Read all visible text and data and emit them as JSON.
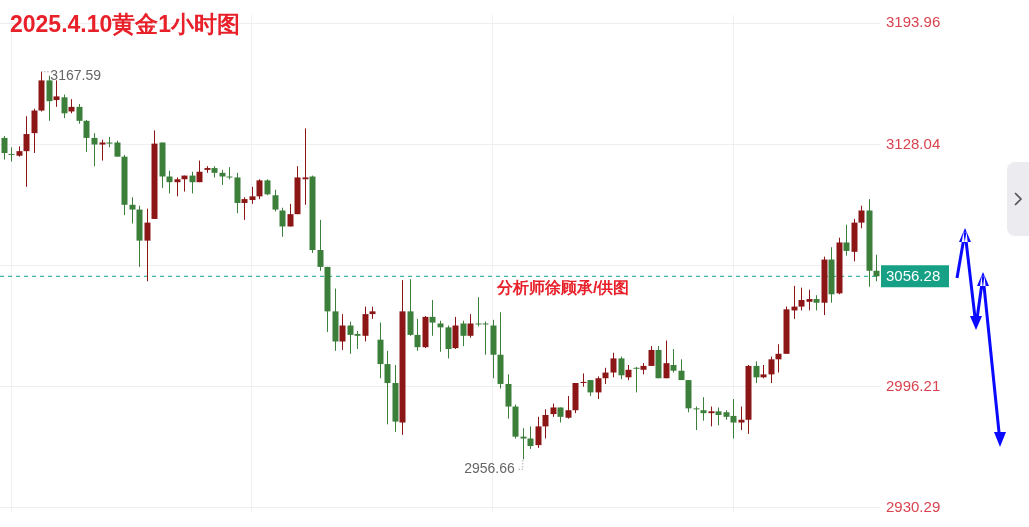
{
  "chart_data": {
    "type": "candlestick",
    "title": "2025.4.10黄金1小时图",
    "categories": [
      null,
      null,
      null,
      null,
      null,
      null,
      null,
      null,
      null,
      null,
      null,
      null,
      null,
      null,
      null,
      null,
      null,
      null,
      null,
      null,
      null,
      null,
      null,
      null,
      null,
      null,
      null,
      null,
      null,
      null,
      null,
      null,
      null,
      null,
      null,
      null,
      null,
      null,
      null,
      null,
      null,
      null,
      null,
      null,
      null,
      null,
      null,
      null,
      null,
      null,
      null,
      null,
      null,
      null,
      null,
      null,
      null,
      null,
      null,
      null,
      null,
      null,
      null,
      null,
      null,
      null,
      null,
      null,
      null,
      null,
      null,
      null,
      null,
      null,
      null,
      null,
      null,
      null,
      null,
      null,
      null,
      null,
      null,
      null,
      null,
      null,
      null,
      null,
      null,
      null,
      null,
      null,
      null,
      null,
      null,
      null,
      null,
      null,
      null,
      null,
      null,
      null,
      null,
      null,
      null,
      null,
      null,
      null,
      null,
      null,
      null,
      null,
      null,
      null,
      null,
      null,
      null
    ],
    "ohlc": [
      [
        3131.6,
        3132.6,
        3119.8,
        3123.4
      ],
      [
        3122.9,
        3126.5,
        3118.8,
        3122.4
      ],
      [
        3121.9,
        3127.0,
        3121.4,
        3124.4
      ],
      [
        3124.4,
        3143.4,
        3105.0,
        3133.7
      ],
      [
        3134.2,
        3147.5,
        3123.4,
        3146.5
      ],
      [
        3146.5,
        3167.59,
        3146.0,
        3162.9
      ],
      [
        3162.9,
        3165.5,
        3140.9,
        3151.6
      ],
      [
        3152.2,
        3162.9,
        3148.5,
        3154.2
      ],
      [
        3153.7,
        3155.2,
        3142.4,
        3145.0
      ],
      [
        3146.0,
        3152.7,
        3145.0,
        3148.5
      ],
      [
        3148.5,
        3150.1,
        3139.3,
        3140.9
      ],
      [
        3140.9,
        3141.4,
        3123.9,
        3131.6
      ],
      [
        3131.6,
        3134.2,
        3116.2,
        3128.0
      ],
      [
        3128.0,
        3130.6,
        3119.3,
        3129.1
      ],
      [
        3129.1,
        3132.1,
        3126.5,
        3128.5
      ],
      [
        3129.1,
        3130.1,
        3121.4,
        3121.4
      ],
      [
        3121.4,
        3122.4,
        3089.6,
        3095.2
      ],
      [
        3095.2,
        3099.3,
        3085.0,
        3092.6
      ],
      [
        3092.6,
        3094.7,
        3061.4,
        3075.7
      ],
      [
        3075.7,
        3093.1,
        3053.6,
        3085.5
      ],
      [
        3087.5,
        3135.7,
        3087.5,
        3128.5
      ],
      [
        3129.1,
        3129.1,
        3104.4,
        3110.6
      ],
      [
        3110.6,
        3113.7,
        3101.4,
        3107.5
      ],
      [
        3107.5,
        3110.1,
        3099.8,
        3109.1
      ],
      [
        3109.1,
        3111.1,
        3102.4,
        3111.1
      ],
      [
        3111.1,
        3113.2,
        3101.4,
        3107.5
      ],
      [
        3107.5,
        3119.3,
        3107.5,
        3113.2
      ],
      [
        3114.2,
        3116.2,
        3112.6,
        3115.2
      ],
      [
        3115.2,
        3116.2,
        3110.1,
        3112.6
      ],
      [
        3112.6,
        3114.2,
        3106.0,
        3110.6
      ],
      [
        3110.6,
        3115.7,
        3109.1,
        3110.1
      ],
      [
        3110.1,
        3112.6,
        3090.6,
        3096.2
      ],
      [
        3096.2,
        3099.3,
        3087.0,
        3098.3
      ],
      [
        3097.8,
        3105.0,
        3095.7,
        3099.8
      ],
      [
        3099.8,
        3109.1,
        3098.3,
        3108.5
      ],
      [
        3108.5,
        3109.1,
        3100.4,
        3100.9
      ],
      [
        3100.4,
        3103.4,
        3091.6,
        3092.6
      ],
      [
        3092.1,
        3093.6,
        3077.8,
        3083.4
      ],
      [
        3083.4,
        3095.7,
        3083.4,
        3090.1
      ],
      [
        3090.1,
        3116.2,
        3090.1,
        3110.1
      ],
      [
        3109.1,
        3136.8,
        3095.2,
        3110.1
      ],
      [
        3110.6,
        3111.1,
        3069.0,
        3070.6
      ],
      [
        3070.6,
        3087.0,
        3059.3,
        3061.4
      ],
      [
        3061.4,
        3061.4,
        3026.0,
        3037.2
      ],
      [
        3037.2,
        3049.6,
        3015.7,
        3020.8
      ],
      [
        3020.8,
        3035.7,
        3016.2,
        3029.5
      ],
      [
        3029.5,
        3031.6,
        3014.1,
        3024.4
      ],
      [
        3024.9,
        3026.5,
        3016.7,
        3023.9
      ],
      [
        3023.9,
        3039.8,
        3020.8,
        3035.7
      ],
      [
        3035.7,
        3039.8,
        3033.1,
        3037.2
      ],
      [
        3021.8,
        3031.1,
        3000.8,
        3008.5
      ],
      [
        3008.5,
        3015.7,
        2975.7,
        2998.2
      ],
      [
        2998.2,
        3008.0,
        2971.6,
        2977.2
      ],
      [
        2976.7,
        3054.2,
        2970.0,
        3037.2
      ],
      [
        3037.2,
        3054.7,
        3023.9,
        3024.4
      ],
      [
        3024.4,
        3033.1,
        3015.7,
        3017.7
      ],
      [
        3017.7,
        3034.7,
        3017.2,
        3034.2
      ],
      [
        3034.2,
        3043.4,
        3023.9,
        3031.1
      ],
      [
        3030.6,
        3032.1,
        3015.2,
        3028.5
      ],
      [
        3028.5,
        3029.5,
        3011.6,
        3016.7
      ],
      [
        3017.2,
        3034.2,
        3016.7,
        3029.5
      ],
      [
        3030.6,
        3032.1,
        3018.3,
        3023.9
      ],
      [
        3023.9,
        3035.7,
        3022.9,
        3030.6
      ],
      [
        3030.6,
        3044.9,
        3029.0,
        3030.1
      ],
      [
        3030.6,
        3031.6,
        3013.6,
        3030.1
      ],
      [
        3029.5,
        3032.6,
        3000.8,
        3013.6
      ],
      [
        3013.6,
        3036.7,
        2995.2,
        2997.7
      ],
      [
        2997.7,
        3002.9,
        2978.8,
        2985.4
      ],
      [
        2985.4,
        2986.5,
        2968.0,
        2969.0
      ],
      [
        2969.0,
        2973.6,
        2956.66,
        2968.0
      ],
      [
        2968.0,
        2974.6,
        2962.3,
        2963.9
      ],
      [
        2964.4,
        2979.8,
        2962.9,
        2974.6
      ],
      [
        2974.6,
        2983.9,
        2968.0,
        2980.8
      ],
      [
        2981.3,
        2987.0,
        2979.8,
        2984.9
      ],
      [
        2984.9,
        2984.9,
        2976.7,
        2979.8
      ],
      [
        2979.3,
        2991.1,
        2978.8,
        2983.4
      ],
      [
        2983.4,
        2998.2,
        2981.8,
        2998.2
      ],
      [
        2998.2,
        3003.4,
        2996.2,
        2998.8
      ],
      [
        2999.8,
        2999.8,
        2991.1,
        2993.1
      ],
      [
        2993.1,
        3001.8,
        2989.5,
        3000.8
      ],
      [
        3000.8,
        3006.5,
        2997.7,
        3003.9
      ],
      [
        3003.9,
        3014.7,
        3001.3,
        3011.6
      ],
      [
        3011.6,
        3012.6,
        3000.3,
        3002.4
      ],
      [
        3001.3,
        3008.0,
        2999.8,
        3005.4
      ],
      [
        3006.5,
        3007.0,
        2993.1,
        3006.0
      ],
      [
        3005.4,
        3009.0,
        3002.9,
        3007.5
      ],
      [
        3007.5,
        3018.3,
        3007.5,
        3016.2
      ],
      [
        3016.2,
        3018.3,
        3000.8,
        3000.8
      ],
      [
        3000.8,
        3021.3,
        3000.8,
        3009.0
      ],
      [
        3008.0,
        3016.7,
        3003.9,
        3004.9
      ],
      [
        3004.9,
        3011.1,
        2999.8,
        2999.8
      ],
      [
        2999.8,
        2999.8,
        2982.3,
        2984.4
      ],
      [
        2984.4,
        2985.4,
        2972.6,
        2983.9
      ],
      [
        2983.4,
        2990.5,
        2977.7,
        2981.8
      ],
      [
        2981.8,
        2985.4,
        2974.6,
        2982.8
      ],
      [
        2982.8,
        2984.9,
        2975.2,
        2980.8
      ],
      [
        2982.3,
        2983.4,
        2978.2,
        2979.8
      ],
      [
        2980.3,
        2989.5,
        2968.0,
        2976.7
      ],
      [
        2976.7,
        2985.4,
        2972.6,
        2978.2
      ],
      [
        2978.2,
        3008.0,
        2970.5,
        3007.5
      ],
      [
        3007.5,
        3010.0,
        2998.2,
        3001.3
      ],
      [
        3001.3,
        3008.0,
        3000.8,
        3002.9
      ],
      [
        3002.9,
        3012.6,
        2998.2,
        3011.1
      ],
      [
        3011.1,
        3019.3,
        3003.9,
        3014.1
      ],
      [
        3014.1,
        3039.8,
        3014.1,
        3038.3
      ],
      [
        3037.7,
        3051.1,
        3033.1,
        3039.8
      ],
      [
        3039.8,
        3050.1,
        3037.7,
        3043.4
      ],
      [
        3042.4,
        3049.0,
        3037.7,
        3043.9
      ],
      [
        3043.9,
        3046.0,
        3037.7,
        3041.9
      ],
      [
        3041.9,
        3067.0,
        3035.2,
        3065.4
      ],
      [
        3065.4,
        3072.1,
        3041.9,
        3046.5
      ],
      [
        3047.0,
        3077.3,
        3046.5,
        3074.7
      ],
      [
        3074.7,
        3084.4,
        3067.5,
        3070.1
      ],
      [
        3069.6,
        3087.5,
        3064.4,
        3085.5
      ],
      [
        3085.5,
        3094.7,
        3082.4,
        3092.1
      ],
      [
        3092.1,
        3098.3,
        3050.6,
        3059.3
      ],
      [
        3059.3,
        3068.0,
        3053.6,
        3056.28
      ]
    ],
    "colors": [
      "#3b7f3b",
      "#3b7f3b",
      "#8c1616",
      "#8c1616",
      "#8c1616",
      "#8c1616",
      "#3b7f3b",
      "#8c1616",
      "#3b7f3b",
      "#8c1616",
      "#3b7f3b",
      "#3b7f3b",
      "#3b7f3b",
      "#8c1616",
      "#3b7f3b",
      "#3b7f3b",
      "#3b7f3b",
      "#3b7f3b",
      "#3b7f3b",
      "#8c1616",
      "#8c1616",
      "#3b7f3b",
      "#3b7f3b",
      "#8c1616",
      "#8c1616",
      "#3b7f3b",
      "#8c1616",
      "#8c1616",
      "#3b7f3b",
      "#3b7f3b",
      "#3b7f3b",
      "#3b7f3b",
      "#8c1616",
      "#8c1616",
      "#8c1616",
      "#3b7f3b",
      "#3b7f3b",
      "#3b7f3b",
      "#8c1616",
      "#8c1616",
      "#8c1616",
      "#3b7f3b",
      "#3b7f3b",
      "#3b7f3b",
      "#3b7f3b",
      "#8c1616",
      "#3b7f3b",
      "#3b7f3b",
      "#8c1616",
      "#8c1616",
      "#3b7f3b",
      "#3b7f3b",
      "#3b7f3b",
      "#8c1616",
      "#3b7f3b",
      "#3b7f3b",
      "#8c1616",
      "#3b7f3b",
      "#3b7f3b",
      "#3b7f3b",
      "#8c1616",
      "#3b7f3b",
      "#8c1616",
      "#3b7f3b",
      "#3b7f3b",
      "#3b7f3b",
      "#3b7f3b",
      "#3b7f3b",
      "#3b7f3b",
      "#3b7f3b",
      "#3b7f3b",
      "#8c1616",
      "#8c1616",
      "#8c1616",
      "#3b7f3b",
      "#8c1616",
      "#8c1616",
      "#8c1616",
      "#3b7f3b",
      "#8c1616",
      "#8c1616",
      "#8c1616",
      "#3b7f3b",
      "#8c1616",
      "#3b7f3b",
      "#8c1616",
      "#8c1616",
      "#3b7f3b",
      "#8c1616",
      "#3b7f3b",
      "#3b7f3b",
      "#3b7f3b",
      "#3b7f3b",
      "#3b7f3b",
      "#8c1616",
      "#3b7f3b",
      "#3b7f3b",
      "#3b7f3b",
      "#8c1616",
      "#8c1616",
      "#3b7f3b",
      "#8c1616",
      "#8c1616",
      "#8c1616",
      "#8c1616",
      "#8c1616",
      "#8c1616",
      "#8c1616",
      "#3b7f3b",
      "#8c1616",
      "#3b7f3b",
      "#8c1616",
      "#3b7f3b",
      "#8c1616",
      "#8c1616",
      "#3b7f3b",
      "#3b7f3b"
    ],
    "ylim": [
      2928,
      3198.5
    ],
    "yticks": [
      2930.29,
      2996.21,
      {
        "value": 3062.13,
        "label": null
      },
      3128.04,
      3193.96
    ],
    "grid": true,
    "ref_lines": [
      {
        "axis": "y",
        "value": 3056.28,
        "label": "3056.28",
        "color": "#16a085",
        "line_style": "dashed"
      }
    ],
    "annotations": [
      "3167.59",
      "2956.66",
      "分析师徐顾承/供图"
    ]
  }
}
